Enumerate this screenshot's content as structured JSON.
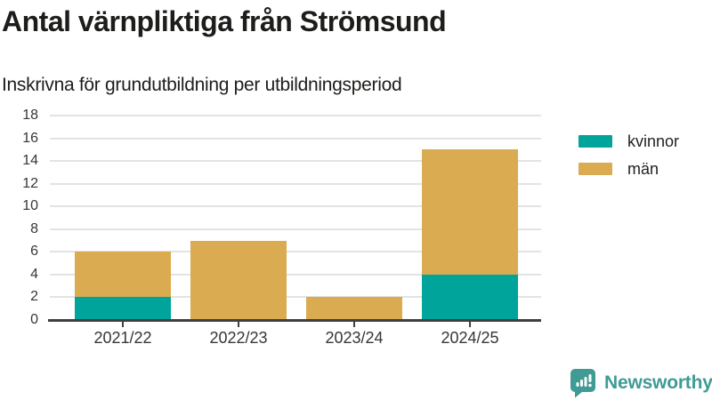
{
  "header": {
    "title": "Antal värnpliktiga från Strömsund",
    "subtitle": "Inskrivna för grundutbildning per utbildningsperiod"
  },
  "chart_data": {
    "type": "bar",
    "stacked": true,
    "categories": [
      "2021/22",
      "2022/23",
      "2023/24",
      "2024/25"
    ],
    "series": [
      {
        "name": "kvinnor",
        "color": "#00a49a",
        "values": [
          2,
          0,
          0,
          4
        ]
      },
      {
        "name": "män",
        "color": "#dbab52",
        "values": [
          4,
          7,
          2,
          11
        ]
      }
    ],
    "totals": [
      6,
      7,
      2,
      15
    ],
    "title": "Antal värnpliktiga från Strömsund",
    "subtitle": "Inskrivna för grundutbildning per utbildningsperiod",
    "xlabel": "",
    "ylabel": "",
    "ylim": [
      0,
      18
    ],
    "yticks": [
      0,
      2,
      4,
      6,
      8,
      10,
      12,
      14,
      16,
      18
    ],
    "grid": "horizontal",
    "gridline_color": "#e3e3e3",
    "axis_color": "#3f3f3f",
    "legend_position": "right"
  },
  "footer": {
    "brand": "Newsworthy",
    "brand_color": "#3f9b94",
    "logo_icon": "bar-chart-speech-bubble-icon"
  }
}
